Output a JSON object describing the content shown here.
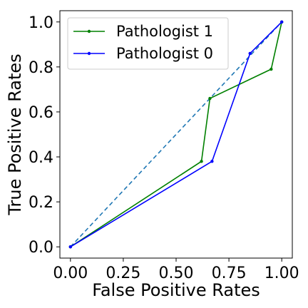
{
  "chart_data": {
    "type": "line",
    "title": "",
    "xlabel": "False Positive Rates",
    "ylabel": "True Positive Rates",
    "xlim": [
      -0.05,
      1.05
    ],
    "ylim": [
      -0.05,
      1.05
    ],
    "xticks": [
      0.0,
      0.25,
      0.5,
      0.75,
      1.0
    ],
    "xtick_labels": [
      "0.00",
      "0.25",
      "0.50",
      "0.75",
      "1.00"
    ],
    "yticks": [
      0.0,
      0.2,
      0.4,
      0.6,
      0.8,
      1.0
    ],
    "ytick_labels": [
      "0.0",
      "0.2",
      "0.4",
      "0.6",
      "0.8",
      "1.0"
    ],
    "grid": false,
    "legend_position": "top-left",
    "series": [
      {
        "name": "Pathologist 1",
        "color": "#008000",
        "marker": "dot",
        "x": [
          0.0,
          0.62,
          0.66,
          0.95,
          1.0
        ],
        "y": [
          0.0,
          0.38,
          0.66,
          0.79,
          1.0
        ]
      },
      {
        "name": "Pathologist 0",
        "color": "#0000ff",
        "marker": "dot",
        "x": [
          0.0,
          0.67,
          0.85,
          1.0
        ],
        "y": [
          0.0,
          0.38,
          0.86,
          1.0
        ]
      }
    ],
    "reference_line": {
      "style": "dashed",
      "color": "#1f77b4",
      "x": [
        0.0,
        1.0
      ],
      "y": [
        0.0,
        1.0
      ]
    }
  }
}
